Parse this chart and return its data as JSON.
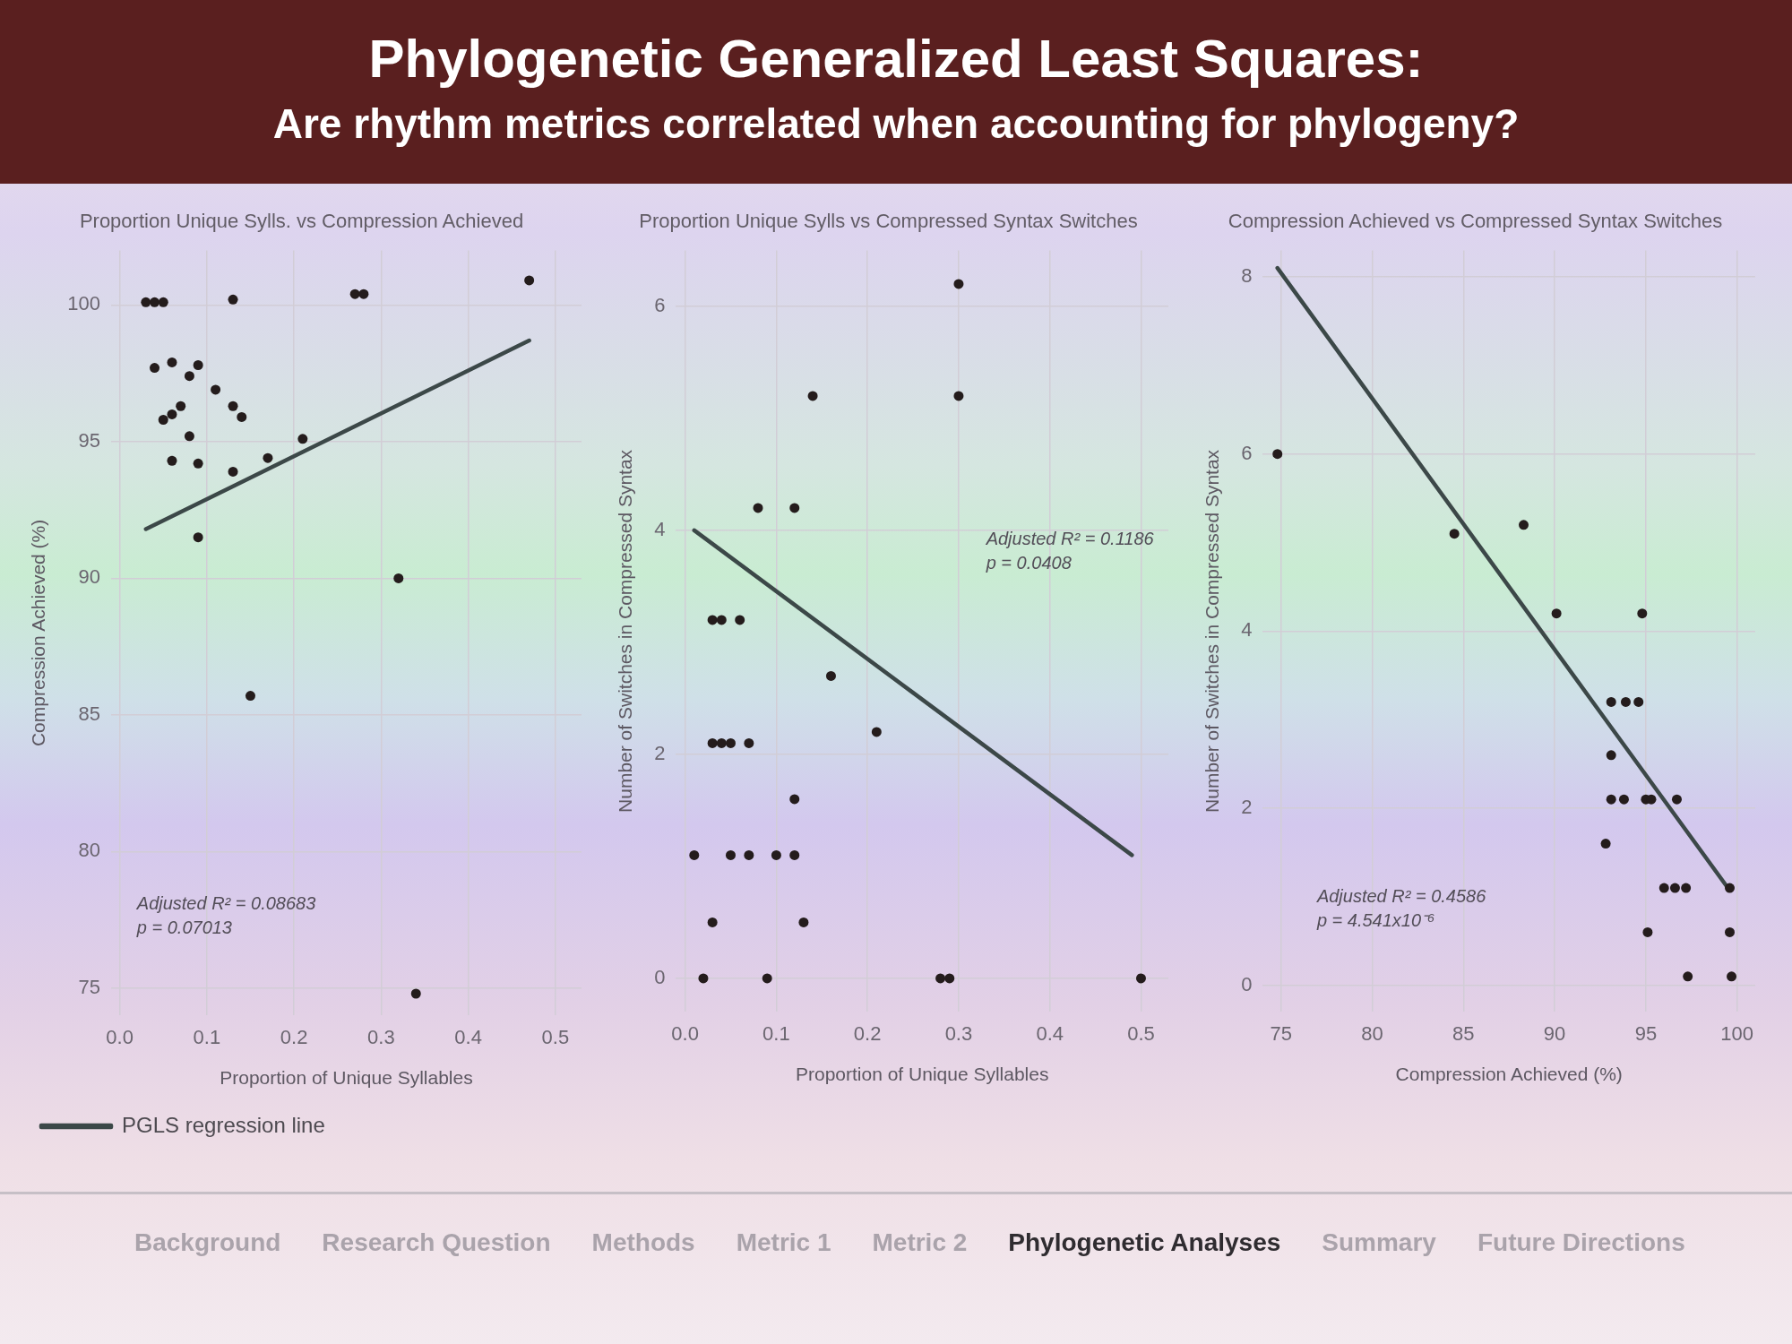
{
  "chart_data": [
    {
      "type": "other",
      "title": "Phylogenetic Generalized Least Squares:",
      "subtitle": "Are rhythm metrics correlated when accounting for phylogeny?"
    },
    {
      "type": "scatter",
      "title": "Proportion Unique Sylls. vs Compression Achieved",
      "xlabel": "Proportion of Unique Syllables",
      "ylabel": "Compression Achieved (%)",
      "xlim": [
        -0.01,
        0.53
      ],
      "ylim": [
        74,
        102
      ],
      "xticks": [
        {
          "value": 0,
          "label": "0.0"
        },
        0.1,
        0.2,
        0.3,
        0.4,
        0.5
      ],
      "yticks": [
        75,
        80,
        85,
        90,
        95,
        100
      ],
      "grid": true,
      "marker": "circle",
      "legend": "bottom left",
      "annotations": [
        "Adjusted R² = 0.08683",
        "p = 0.07013"
      ],
      "series": [
        {
          "type": "scatter",
          "color": "#241c1c",
          "x": [
            0.47,
            0.27,
            0.28,
            0.13,
            0.03,
            0.04,
            0.05,
            0.04,
            0.06,
            0.08,
            0.09,
            0.11,
            0.13,
            0.14,
            0.05,
            0.06,
            0.07,
            0.08,
            0.06,
            0.09,
            0.13,
            0.17,
            0.21,
            0.09,
            0.32,
            0.15,
            0.34
          ],
          "values": [
            100.9,
            100.4,
            100.4,
            100.2,
            100.1,
            100.1,
            100.1,
            97.7,
            97.9,
            97.4,
            97.8,
            96.9,
            96.3,
            95.9,
            95.8,
            96.0,
            96.3,
            95.2,
            94.3,
            94.2,
            93.9,
            94.4,
            95.1,
            91.5,
            90.0,
            85.7,
            74.8
          ]
        },
        {
          "type": "line",
          "name": "PGLS regression line",
          "color": "#3c4848",
          "marker": "none",
          "x": [
            0.03,
            0.47
          ],
          "values": [
            91.8,
            98.7
          ]
        }
      ]
    },
    {
      "type": "scatter",
      "title": "Proportion Unique Sylls vs Compressed Syntax Switches",
      "xlabel": "Proportion of Unique Syllables",
      "ylabel": "Number of Switches in Compressed Syntax",
      "xlim": [
        -0.01,
        0.53
      ],
      "ylim": [
        -0.3,
        6.5
      ],
      "xticks": [
        {
          "value": 0,
          "label": "0.0"
        },
        0.1,
        0.2,
        0.3,
        0.4,
        0.5
      ],
      "yticks": [
        0,
        2,
        4,
        6
      ],
      "grid": true,
      "marker": "circle",
      "annotations": [
        "Adjusted R² = 0.1186",
        "p = 0.0408"
      ],
      "series": [
        {
          "type": "scatter",
          "color": "#241c1c",
          "x": [
            0.3,
            0.3,
            0.14,
            0.08,
            0.12,
            0.03,
            0.04,
            0.06,
            0.16,
            0.21,
            0.03,
            0.04,
            0.05,
            0.07,
            0.12,
            0.01,
            0.05,
            0.07,
            0.1,
            0.12,
            0.03,
            0.13,
            0.02,
            0.09,
            0.28,
            0.29,
            0.5
          ],
          "values": [
            6.2,
            5.2,
            5.2,
            4.2,
            4.2,
            3.2,
            3.2,
            3.2,
            2.7,
            2.2,
            2.1,
            2.1,
            2.1,
            2.1,
            1.6,
            1.1,
            1.1,
            1.1,
            1.1,
            1.1,
            0.5,
            0.5,
            0,
            0,
            0,
            0,
            0
          ]
        },
        {
          "type": "line",
          "color": "#3c4848",
          "marker": "none",
          "x": [
            0.01,
            0.49
          ],
          "values": [
            4.0,
            1.1
          ]
        }
      ]
    },
    {
      "type": "scatter",
      "title": "Compression Achieved vs Compressed Syntax Switches",
      "xlabel": "Compression Achieved (%)",
      "ylabel": "Number of Switches in Compressed Syntax",
      "xlim": [
        74,
        101
      ],
      "ylim": [
        -0.3,
        8.3
      ],
      "xticks": [
        75,
        80,
        85,
        90,
        95,
        100
      ],
      "yticks": [
        0,
        2,
        4,
        6,
        8
      ],
      "grid": true,
      "marker": "circle",
      "annotations": [
        "Adjusted R² = 0.4586",
        "p = 4.541x10⁻⁶"
      ],
      "series": [
        {
          "type": "scatter",
          "color": "#241c1c",
          "x": [
            74.8,
            84.5,
            88.3,
            90.1,
            94.8,
            93.1,
            93.9,
            94.6,
            93.1,
            93.1,
            93.8,
            95.0,
            95.3,
            96.7,
            92.8,
            96.0,
            96.6,
            97.2,
            99.6,
            95.1,
            99.6,
            97.3,
            99.7
          ],
          "values": [
            6.0,
            5.1,
            5.2,
            4.2,
            4.2,
            3.2,
            3.2,
            3.2,
            2.6,
            2.1,
            2.1,
            2.1,
            2.1,
            2.1,
            1.6,
            1.1,
            1.1,
            1.1,
            1.1,
            0.6,
            0.6,
            0.1,
            0.1
          ]
        },
        {
          "type": "line",
          "color": "#3c4848",
          "marker": "none",
          "x": [
            74.8,
            99.5
          ],
          "values": [
            8.1,
            1.1
          ]
        }
      ]
    },
    {
      "type": "other",
      "annotations": [
        "Background",
        "Research Question",
        "Methods",
        "Metric 1",
        "Metric 2",
        "Phylogenetic Analyses",
        "Summary",
        "Future Directions"
      ]
    }
  ]
}
